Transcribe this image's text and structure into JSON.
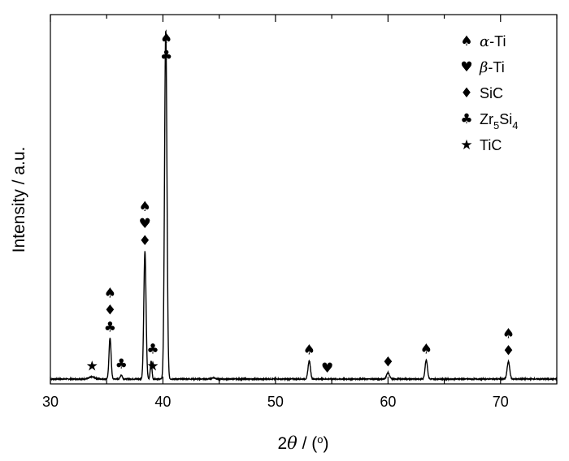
{
  "chart_data": {
    "type": "line",
    "xlabel": {
      "pre": "2",
      "symbol": "θ",
      "post": " / (",
      "sup": "o",
      "close": ")"
    },
    "ylabel": "Intensity / a.u.",
    "xlim": [
      30,
      75
    ],
    "xticks": [
      30,
      40,
      50,
      60,
      70
    ],
    "yticks_shown": false,
    "grid": false,
    "legend_position": "top-right",
    "legend": [
      {
        "symbol": "spade-marker",
        "glyph": "♠",
        "label_italic": "α",
        "label_rest": "-Ti"
      },
      {
        "symbol": "heart-marker",
        "glyph": "♥",
        "label_italic": "β",
        "label_rest": "-Ti"
      },
      {
        "symbol": "diamond-marker",
        "glyph": "♦",
        "label_plain": "SiC"
      },
      {
        "symbol": "club-marker",
        "glyph": "♣",
        "label_plain": "Zr",
        "sub1": "5",
        "mid": "Si",
        "sub2": "4"
      },
      {
        "symbol": "star-marker",
        "glyph": "★",
        "label_plain": "TiC"
      }
    ],
    "baseline": 0.0,
    "peaks": [
      {
        "x": 33.7,
        "height": 0.006,
        "width": 0.35
      },
      {
        "x": 35.3,
        "height": 0.118,
        "width": 0.13
      },
      {
        "x": 36.3,
        "height": 0.012,
        "width": 0.12
      },
      {
        "x": 38.4,
        "height": 0.365,
        "width": 0.14
      },
      {
        "x": 38.95,
        "height": 0.052,
        "width": 0.1
      },
      {
        "x": 40.25,
        "height": 1.0,
        "width": 0.15
      },
      {
        "x": 44.5,
        "height": 0.004,
        "width": 0.2
      },
      {
        "x": 53.0,
        "height": 0.052,
        "width": 0.15
      },
      {
        "x": 60.0,
        "height": 0.018,
        "width": 0.18
      },
      {
        "x": 63.4,
        "height": 0.055,
        "width": 0.15
      },
      {
        "x": 70.7,
        "height": 0.05,
        "width": 0.16
      }
    ],
    "annotations": [
      {
        "x": 33.7,
        "stack": [
          "★"
        ]
      },
      {
        "x": 35.3,
        "stack": [
          "♠",
          "♦",
          "♣"
        ]
      },
      {
        "x": 36.3,
        "stack": [
          "♣"
        ]
      },
      {
        "x": 38.4,
        "stack": [
          "♠",
          "♥",
          "♦"
        ]
      },
      {
        "x": 39.1,
        "stack": [
          "♣",
          "★"
        ]
      },
      {
        "x": 40.3,
        "stack": [
          "♠",
          "♣"
        ]
      },
      {
        "x": 53.0,
        "stack": [
          "♠"
        ]
      },
      {
        "x": 54.6,
        "stack": [
          "♥"
        ]
      },
      {
        "x": 60.0,
        "stack": [
          "♦"
        ]
      },
      {
        "x": 63.4,
        "stack": [
          "♠"
        ]
      },
      {
        "x": 70.7,
        "stack": [
          "♠",
          "♦"
        ]
      }
    ]
  }
}
